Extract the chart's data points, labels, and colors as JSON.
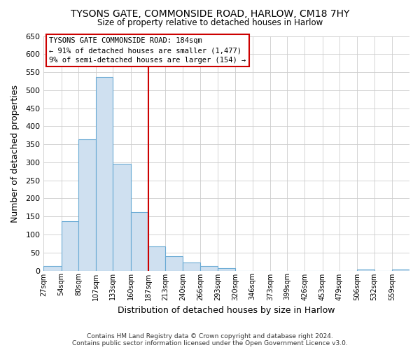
{
  "title": "TYSONS GATE, COMMONSIDE ROAD, HARLOW, CM18 7HY",
  "subtitle": "Size of property relative to detached houses in Harlow",
  "xlabel": "Distribution of detached houses by size in Harlow",
  "ylabel": "Number of detached properties",
  "bar_color": "#cfe0f0",
  "bar_edge_color": "#6aaad4",
  "background_color": "#ffffff",
  "grid_color": "#cccccc",
  "bins": [
    27,
    54,
    80,
    107,
    133,
    160,
    187,
    213,
    240,
    266,
    293,
    320,
    346,
    373,
    399,
    426,
    453,
    479,
    506,
    532,
    559
  ],
  "bin_labels": [
    "27sqm",
    "54sqm",
    "80sqm",
    "107sqm",
    "133sqm",
    "160sqm",
    "187sqm",
    "213sqm",
    "240sqm",
    "266sqm",
    "293sqm",
    "320sqm",
    "346sqm",
    "373sqm",
    "399sqm",
    "426sqm",
    "453sqm",
    "479sqm",
    "506sqm",
    "532sqm",
    "559sqm"
  ],
  "counts": [
    12,
    137,
    364,
    537,
    295,
    162,
    67,
    40,
    22,
    12,
    7,
    0,
    0,
    0,
    0,
    0,
    0,
    0,
    2,
    0,
    2
  ],
  "vline_x": 187,
  "vline_color": "#cc0000",
  "annotation_lines": [
    "TYSONS GATE COMMONSIDE ROAD: 184sqm",
    "← 91% of detached houses are smaller (1,477)",
    "9% of semi-detached houses are larger (154) →"
  ],
  "annotation_box_color": "#ffffff",
  "annotation_box_edge": "#cc0000",
  "ylim": [
    0,
    650
  ],
  "yticks": [
    0,
    50,
    100,
    150,
    200,
    250,
    300,
    350,
    400,
    450,
    500,
    550,
    600,
    650
  ],
  "footer_line1": "Contains HM Land Registry data © Crown copyright and database right 2024.",
  "footer_line2": "Contains public sector information licensed under the Open Government Licence v3.0."
}
